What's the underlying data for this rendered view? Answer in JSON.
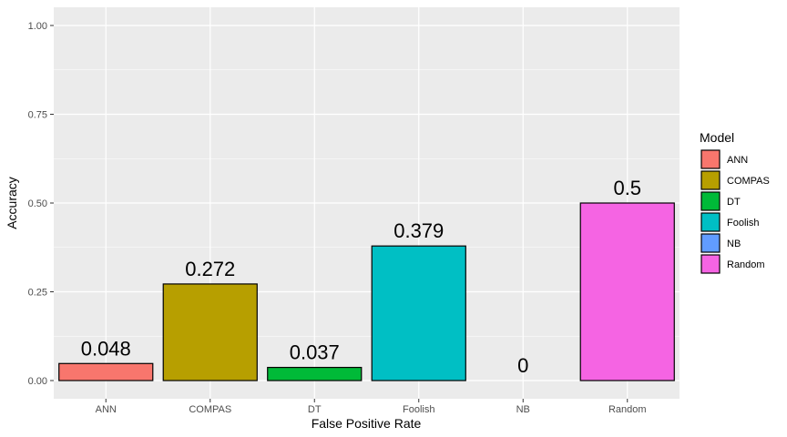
{
  "chart_data": {
    "type": "bar",
    "categories": [
      "ANN",
      "COMPAS",
      "DT",
      "Foolish",
      "NB",
      "Random"
    ],
    "values": [
      0.048,
      0.272,
      0.037,
      0.379,
      0,
      0.5
    ],
    "data_labels": [
      "0.048",
      "0.272",
      "0.037",
      "0.379",
      "0",
      "0.5"
    ],
    "colors": [
      "#F8766D",
      "#B79F00",
      "#00BA38",
      "#00BFC4",
      "#619CFF",
      "#F564E3"
    ],
    "xlabel": "False Positive Rate",
    "ylabel": "Accuracy",
    "ylim": [
      0,
      1
    ],
    "yticks": [
      0,
      0.25,
      0.5,
      0.75,
      1
    ],
    "ytick_labels": [
      "0.00",
      "0.25",
      "0.50",
      "0.75",
      "1.00"
    ],
    "grid": true,
    "legend": {
      "title": "Model",
      "position": "right",
      "entries": [
        "ANN",
        "COMPAS",
        "DT",
        "Foolish",
        "NB",
        "Random"
      ]
    }
  }
}
